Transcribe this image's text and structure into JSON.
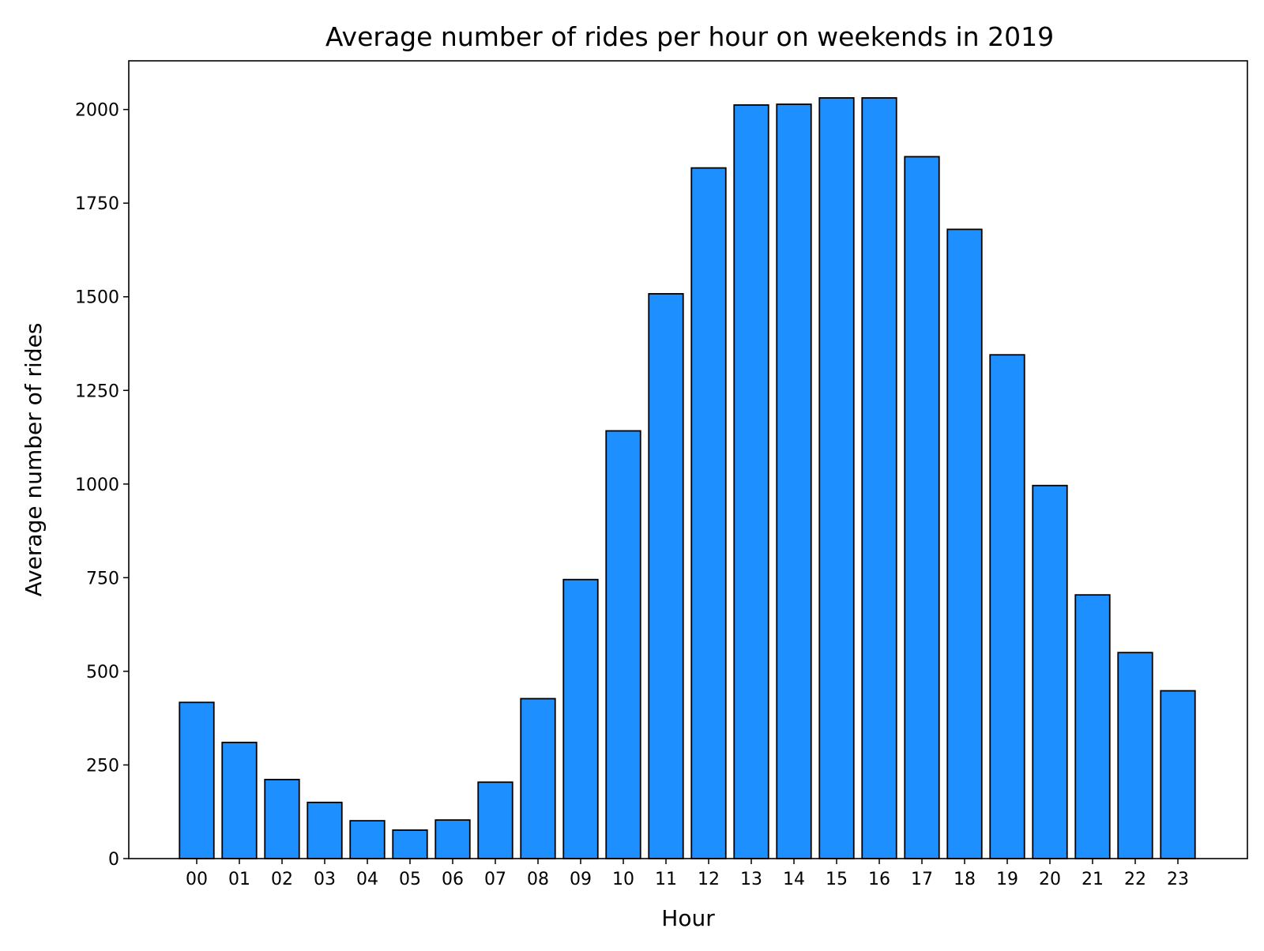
{
  "chart_data": {
    "type": "bar",
    "title": "Average number of rides per hour on weekends in 2019",
    "xlabel": "Hour",
    "ylabel": "Average number of rides",
    "categories": [
      "00",
      "01",
      "02",
      "03",
      "04",
      "05",
      "06",
      "07",
      "08",
      "09",
      "10",
      "11",
      "12",
      "13",
      "14",
      "15",
      "16",
      "17",
      "18",
      "19",
      "20",
      "21",
      "22",
      "23"
    ],
    "values": [
      417,
      310,
      211,
      150,
      101,
      76,
      103,
      204,
      427,
      745,
      1142,
      1508,
      1844,
      2012,
      2014,
      2031,
      2031,
      1874,
      1680,
      1345,
      996,
      704,
      550,
      448
    ],
    "ylim": [
      0,
      2130
    ],
    "yticks": [
      0,
      250,
      500,
      750,
      1000,
      1250,
      1500,
      1750,
      2000
    ],
    "ytick_labels": [
      "0",
      "250",
      "500",
      "750",
      "1000",
      "1250",
      "1500",
      "1750",
      "2000"
    ],
    "grid": false,
    "legend": "none",
    "colors": {
      "bar_fill": "#1e8fff",
      "bar_edge": "#000000",
      "axes": "#000000",
      "background": "#ffffff"
    }
  }
}
